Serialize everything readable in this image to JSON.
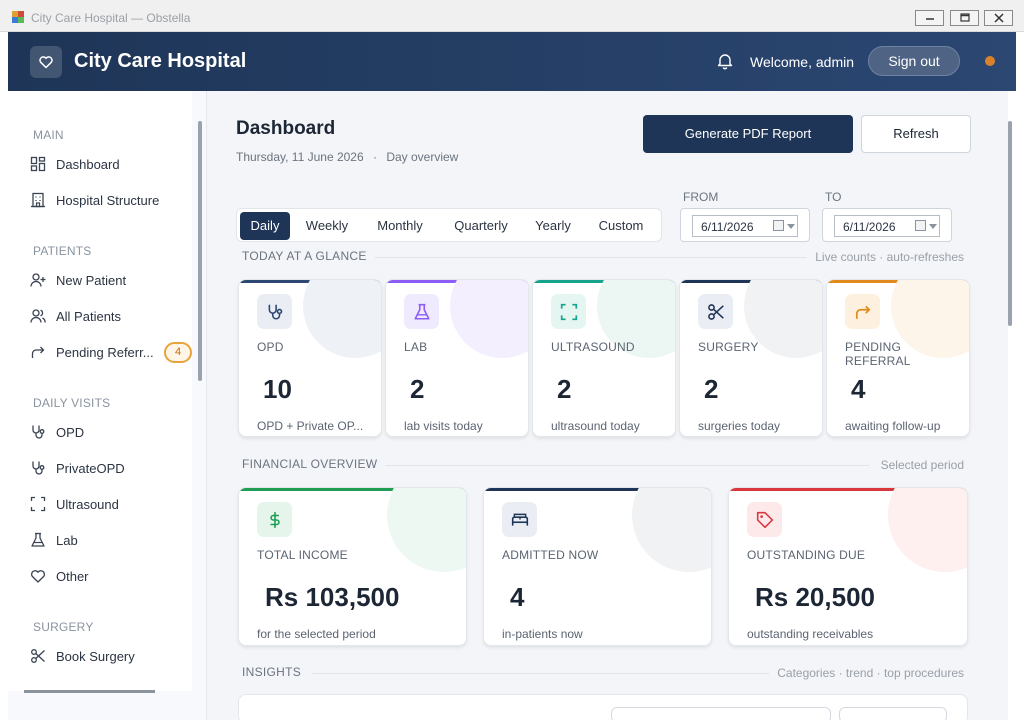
{
  "window": {
    "title": "City Care Hospital — Obstella"
  },
  "header": {
    "app_name": "City Care Hospital",
    "welcome": "Welcome, admin",
    "sign_out": "Sign out"
  },
  "sidebar": {
    "sections": [
      {
        "title": "MAIN",
        "items": [
          {
            "label": "Dashboard",
            "icon": "grid-icon"
          },
          {
            "label": "Hospital Structure",
            "icon": "building-icon"
          }
        ]
      },
      {
        "title": "PATIENTS",
        "items": [
          {
            "label": "New Patient",
            "icon": "user-plus-icon"
          },
          {
            "label": "All Patients",
            "icon": "users-icon"
          },
          {
            "label": "Pending Referr...",
            "icon": "share-arrow-icon",
            "badge": "4"
          }
        ]
      },
      {
        "title": "DAILY VISITS",
        "items": [
          {
            "label": "OPD",
            "icon": "stethoscope-icon"
          },
          {
            "label": "PrivateOPD",
            "icon": "stethoscope-icon"
          },
          {
            "label": "Ultrasound",
            "icon": "scan-icon"
          },
          {
            "label": "Lab",
            "icon": "flask-icon"
          },
          {
            "label": "Other",
            "icon": "heart-icon"
          }
        ]
      },
      {
        "title": "SURGERY",
        "items": [
          {
            "label": "Book Surgery",
            "icon": "scissors-icon"
          }
        ]
      }
    ]
  },
  "dashboard": {
    "title": "Dashboard",
    "date": "Thursday, 11 June 2026",
    "separator": "·",
    "view": "Day overview",
    "generate_pdf": "Generate PDF Report",
    "refresh": "Refresh",
    "periods": [
      "Daily",
      "Weekly",
      "Monthly",
      "Quarterly",
      "Yearly",
      "Custom"
    ],
    "active_period": "Daily",
    "from_label": "FROM",
    "to_label": "TO",
    "from_value": "6/11/2026",
    "to_value": "6/11/2026"
  },
  "glance": {
    "title": "TODAY AT A GLANCE",
    "note": "Live counts · auto-refreshes",
    "cards": [
      {
        "label": "OPD",
        "value": "10",
        "sub": "OPD + Private OP...",
        "icon": "stethoscope-icon",
        "accent": "#2b4772"
      },
      {
        "label": "LAB",
        "value": "2",
        "sub": "lab visits today",
        "icon": "flask-icon",
        "accent": "#8b5cf6"
      },
      {
        "label": "ULTRASOUND",
        "value": "2",
        "sub": "ultrasound today",
        "icon": "scan-icon",
        "accent": "#14a38b"
      },
      {
        "label": "SURGERY",
        "value": "2",
        "sub": "surgeries today",
        "icon": "scissors-icon",
        "accent": "#1e3557"
      },
      {
        "label": "PENDING REFERRAL",
        "value": "4",
        "sub": "awaiting follow-up",
        "icon": "share-arrow-icon",
        "accent": "#e08a1e"
      }
    ]
  },
  "financial": {
    "title": "FINANCIAL OVERVIEW",
    "note": "Selected period",
    "cards": [
      {
        "label": "TOTAL INCOME",
        "value": "Rs 103,500",
        "sub": "for the selected period",
        "icon": "dollar-icon",
        "accent": "#1f9d55"
      },
      {
        "label": "ADMITTED NOW",
        "value": "4",
        "sub": "in-patients now",
        "icon": "bed-icon",
        "accent": "#1e3557"
      },
      {
        "label": "OUTSTANDING DUE",
        "value": "Rs 20,500",
        "sub": "outstanding receivables",
        "icon": "tag-icon",
        "accent": "#d9363e"
      }
    ]
  },
  "insights": {
    "title": "INSIGHTS",
    "note": "Categories · trend · top procedures"
  },
  "colors": {
    "header": "#1e3557",
    "primary": "#1e3557",
    "badge": "#e8a33a",
    "status_dot": "#d9822b"
  }
}
